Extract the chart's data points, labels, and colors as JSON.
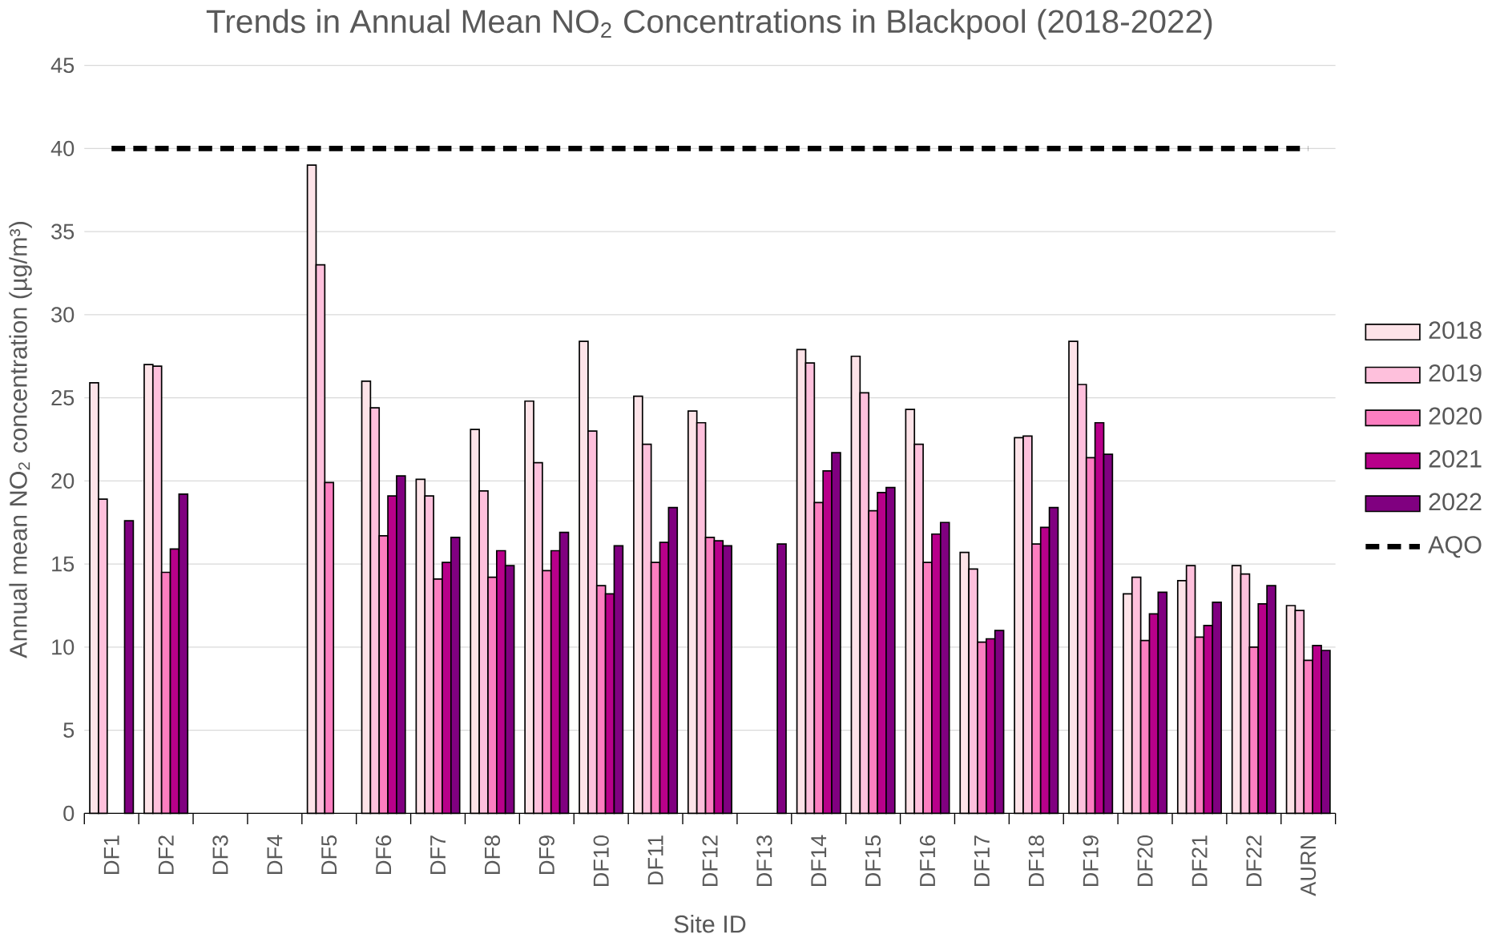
{
  "chart_data": {
    "type": "bar",
    "title": "Trends in Annual Mean NO$_{2}$ Concentrations in Blackpool (2018-2022)",
    "xlabel": "Site ID",
    "ylabel": "Annual mean NO$_{2}$ concentration (µg/m³)",
    "categories": [
      "DF1",
      "DF2",
      "DF3",
      "DF4",
      "DF5",
      "DF6",
      "DF7",
      "DF8",
      "DF9",
      "DF10",
      "DF11",
      "DF12",
      "DF13",
      "DF14",
      "DF15",
      "DF16",
      "DF17",
      "DF18",
      "DF19",
      "DF20",
      "DF21",
      "DF22",
      "AURN"
    ],
    "series": [
      {
        "name": "2018",
        "color": "#fde3e8",
        "values": [
          25.9,
          27.0,
          null,
          null,
          39.0,
          26.0,
          20.1,
          23.1,
          24.8,
          28.4,
          25.1,
          24.2,
          null,
          27.9,
          27.5,
          24.3,
          15.7,
          22.6,
          28.4,
          13.2,
          14.0,
          14.9,
          12.5
        ]
      },
      {
        "name": "2019",
        "color": "#fec0dc",
        "values": [
          18.9,
          26.9,
          null,
          null,
          33.0,
          24.4,
          19.1,
          19.4,
          21.1,
          23.0,
          22.2,
          23.5,
          null,
          27.1,
          25.3,
          22.2,
          14.7,
          22.7,
          25.8,
          14.2,
          14.9,
          14.4,
          12.2
        ]
      },
      {
        "name": "2020",
        "color": "#fc7ec0",
        "values": [
          null,
          14.5,
          null,
          null,
          19.9,
          16.7,
          14.1,
          14.2,
          14.6,
          13.7,
          15.1,
          16.6,
          null,
          18.7,
          18.2,
          15.1,
          10.3,
          16.2,
          21.4,
          10.4,
          10.6,
          10.0,
          9.2
        ]
      },
      {
        "name": "2021",
        "color": "#b8008a",
        "values": [
          null,
          15.9,
          null,
          null,
          null,
          19.1,
          15.1,
          15.8,
          15.8,
          13.2,
          16.3,
          16.4,
          null,
          20.6,
          19.3,
          16.8,
          10.5,
          17.2,
          23.5,
          12.0,
          11.3,
          12.6,
          10.1
        ]
      },
      {
        "name": "2022",
        "color": "#800080",
        "values": [
          17.6,
          19.2,
          null,
          null,
          null,
          20.3,
          16.6,
          14.9,
          16.9,
          16.1,
          18.4,
          16.1,
          16.2,
          21.7,
          19.6,
          17.5,
          11.0,
          18.4,
          21.6,
          13.3,
          12.7,
          13.7,
          9.8
        ]
      }
    ],
    "ref_lines": [
      {
        "axis": "y",
        "value": 40,
        "label": "AQO",
        "color": "#000000",
        "line_style": "dashed"
      }
    ],
    "ylim": [
      0,
      45
    ],
    "yticks": [
      0,
      5,
      10,
      15,
      20,
      25,
      30,
      35,
      40,
      45
    ],
    "grid": "y",
    "legend": "right"
  }
}
